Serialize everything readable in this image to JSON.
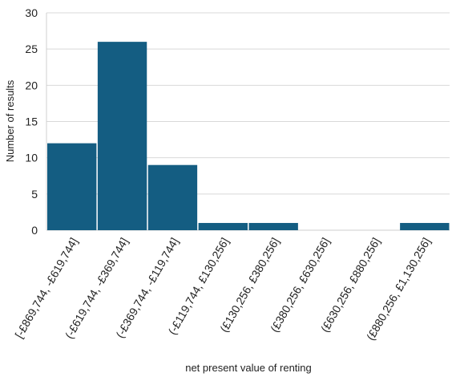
{
  "chart_data": {
    "type": "bar",
    "categories": [
      "[-£869,744, -£619,744]",
      "(-£619,744, -£369,744]",
      "(-£369,744, -£119,744]",
      "(-£119,744, £130,256]",
      "(£130,256, £380,256]",
      "(£380,256, £630,256]",
      "(£630,256, £880,256]",
      "(£880,256, £1,130,256]"
    ],
    "values": [
      12,
      26,
      9,
      1,
      1,
      0,
      0,
      1
    ],
    "xlabel": "net present value of renting",
    "ylabel": "Number of results",
    "ylim": [
      0,
      30
    ],
    "yticks": [
      "0",
      "5",
      "10",
      "15",
      "20",
      "25",
      "30"
    ],
    "grid": true,
    "bar_color": "#145d82"
  }
}
